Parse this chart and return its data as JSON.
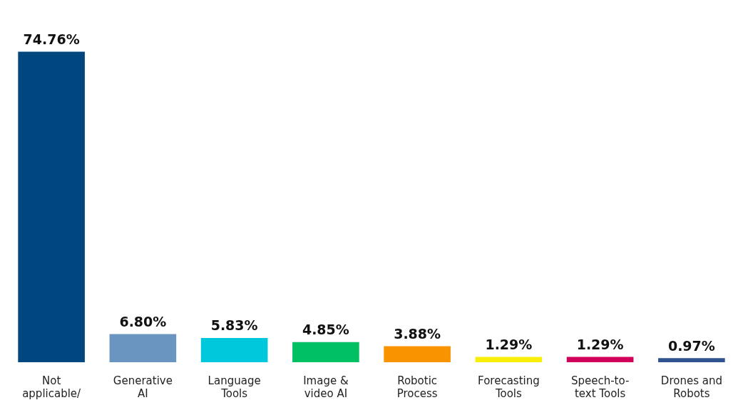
{
  "chart_data": {
    "type": "bar",
    "categories": [
      "Not applicable/",
      "Generative AI",
      "Language Tools",
      "Image & video AI",
      "Robotic Process",
      "Forecasting Tools",
      "Speech-to-text Tools",
      "Drones and Robots"
    ],
    "values": [
      74.76,
      6.8,
      5.83,
      4.85,
      3.88,
      1.29,
      1.29,
      0.97
    ],
    "value_labels": [
      "74.76%",
      "6.80%",
      "5.83%",
      "4.85%",
      "3.88%",
      "1.29%",
      "1.29%",
      "0.97%"
    ],
    "colors": [
      "#00477f",
      "#6995c0",
      "#00c8dc",
      "#00c064",
      "#f99400",
      "#f9ee0a",
      "#d1005a",
      "#2f5290"
    ],
    "grid": false,
    "legend": false
  }
}
